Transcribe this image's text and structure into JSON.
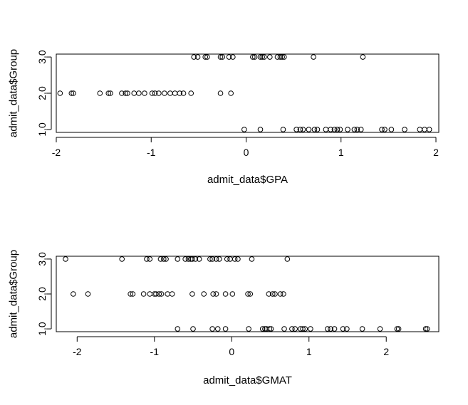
{
  "chart_data": [
    {
      "type": "scatter",
      "xlabel": "admit_data$GPA",
      "ylabel": "admit_data$Group",
      "xlim": [
        -2.0,
        2.03
      ],
      "ylim": [
        0.92,
        3.08
      ],
      "xticks": [
        -2,
        -1,
        0,
        1,
        2
      ],
      "yticks": [
        1.0,
        2.0,
        3.0
      ],
      "xtick_labels": [
        "-2",
        "-1",
        "0",
        "1",
        "2"
      ],
      "ytick_labels": [
        "1.0",
        "2.0",
        "3.0"
      ],
      "series": [
        {
          "x": [
            -0.55,
            -0.51,
            -0.43,
            -0.41,
            -0.27,
            -0.25,
            -0.18,
            -0.14,
            0.07,
            0.09,
            0.15,
            0.17,
            0.19,
            0.25,
            0.33,
            0.36,
            0.38,
            0.4,
            0.71,
            1.23
          ],
          "y": [
            3,
            3,
            3,
            3,
            3,
            3,
            3,
            3,
            3,
            3,
            3,
            3,
            3,
            3,
            3,
            3,
            3,
            3,
            3,
            3
          ]
        },
        {
          "x": [
            -1.96,
            -1.84,
            -1.82,
            -1.54,
            -1.45,
            -1.43,
            -1.31,
            -1.27,
            -1.25,
            -1.18,
            -1.13,
            -1.07,
            -0.99,
            -0.96,
            -0.92,
            -0.86,
            -0.8,
            -0.75,
            -0.7,
            -0.66,
            -0.58,
            -0.27,
            -0.16
          ],
          "y": [
            2,
            2,
            2,
            2,
            2,
            2,
            2,
            2,
            2,
            2,
            2,
            2,
            2,
            2,
            2,
            2,
            2,
            2,
            2,
            2,
            2,
            2,
            2
          ]
        },
        {
          "x": [
            -0.02,
            0.15,
            0.39,
            0.53,
            0.57,
            0.6,
            0.66,
            0.72,
            0.75,
            0.84,
            0.89,
            0.93,
            0.96,
            0.99,
            1.07,
            1.14,
            1.17,
            1.21,
            1.43,
            1.46,
            1.53,
            1.67,
            1.83,
            1.88,
            1.93
          ],
          "y": [
            1,
            1,
            1,
            1,
            1,
            1,
            1,
            1,
            1,
            1,
            1,
            1,
            1,
            1,
            1,
            1,
            1,
            1,
            1,
            1,
            1,
            1,
            1,
            1,
            1
          ]
        }
      ]
    },
    {
      "type": "scatter",
      "xlabel": "admit_data$GMAT",
      "ylabel": "admit_data$Group",
      "xlim": [
        -2.27,
        2.68
      ],
      "ylim": [
        0.92,
        3.08
      ],
      "xticks": [
        -2,
        -1,
        0,
        1,
        2
      ],
      "yticks": [
        1.0,
        2.0,
        3.0
      ],
      "xtick_labels": [
        "-2",
        "-1",
        "0",
        "1",
        "2"
      ],
      "ytick_labels": [
        "1.0",
        "2.0",
        "3.0"
      ],
      "series": [
        {
          "x": [
            -2.15,
            -1.42,
            -1.1,
            -1.06,
            -0.92,
            -0.88,
            -0.85,
            -0.7,
            -0.6,
            -0.56,
            -0.53,
            -0.51,
            -0.47,
            -0.42,
            -0.28,
            -0.25,
            -0.2,
            -0.16,
            -0.06,
            -0.02,
            0.04,
            0.08,
            0.26,
            0.72
          ],
          "y": [
            3,
            3,
            3,
            3,
            3,
            3,
            3,
            3,
            3,
            3,
            3,
            3,
            3,
            3,
            3,
            3,
            3,
            3,
            3,
            3,
            3,
            3,
            3,
            3
          ]
        },
        {
          "x": [
            -2.05,
            -1.86,
            -1.31,
            -1.28,
            -1.14,
            -1.06,
            -1.0,
            -0.98,
            -0.94,
            -0.91,
            -0.83,
            -0.77,
            -0.51,
            -0.36,
            -0.24,
            -0.2,
            -0.08,
            0.01,
            0.21,
            0.24,
            0.48,
            0.53,
            0.56,
            0.63,
            0.67
          ],
          "y": [
            2,
            2,
            2,
            2,
            2,
            2,
            2,
            2,
            2,
            2,
            2,
            2,
            2,
            2,
            2,
            2,
            2,
            2,
            2,
            2,
            2,
            2,
            2,
            2,
            2
          ]
        },
        {
          "x": [
            -0.7,
            -0.5,
            -0.25,
            -0.18,
            -0.08,
            0.22,
            0.4,
            0.43,
            0.45,
            0.49,
            0.51,
            0.68,
            0.78,
            0.82,
            0.89,
            0.92,
            0.95,
            1.02,
            1.24,
            1.28,
            1.33,
            1.44,
            1.49,
            1.69,
            1.92,
            2.14,
            2.16,
            2.51,
            2.53
          ],
          "y": [
            1,
            1,
            1,
            1,
            1,
            1,
            1,
            1,
            1,
            1,
            1,
            1,
            1,
            1,
            1,
            1,
            1,
            1,
            1,
            1,
            1,
            1,
            1,
            1,
            1,
            1,
            1,
            1,
            1
          ]
        }
      ]
    }
  ]
}
